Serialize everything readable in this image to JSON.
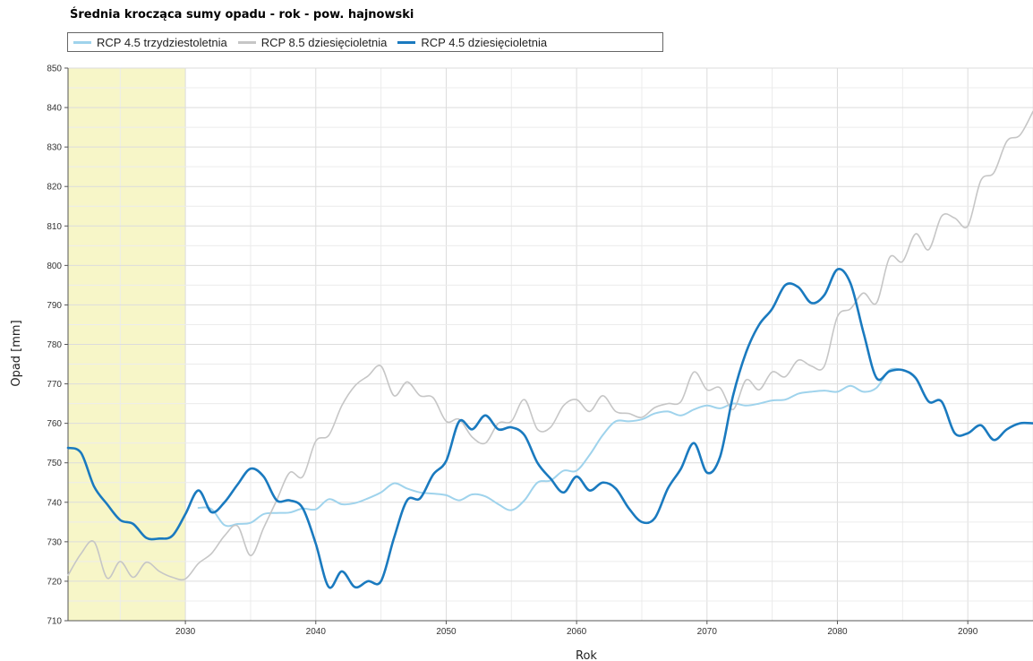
{
  "chart_data": {
    "type": "line",
    "title": "Średnia krocząca sumy opadu - rok - pow. hajnowski",
    "xlabel": "Rok",
    "ylabel": "Opad [mm]",
    "xlim": [
      2021,
      2095
    ],
    "ylim": [
      710,
      850
    ],
    "x_ticks": [
      "2030",
      "2040",
      "2050",
      "2060",
      "2070",
      "2080",
      "2090"
    ],
    "y_ticks": [
      "710",
      "720",
      "730",
      "740",
      "750",
      "760",
      "770",
      "780",
      "790",
      "800",
      "810",
      "820",
      "830",
      "840",
      "850"
    ],
    "grid": true,
    "legend_position": "top",
    "highlight_region": {
      "x_from": 2021,
      "x_to": 2030,
      "color": "#f7f6c8"
    },
    "series": [
      {
        "name": "RCP 4.5 trzydziestoletnia",
        "color": "#9fd3ec",
        "width": 2,
        "x": [
          2031,
          2032,
          2033,
          2034,
          2035,
          2036,
          2037,
          2038,
          2039,
          2040,
          2041,
          2042,
          2043,
          2044,
          2045,
          2046,
          2047,
          2048,
          2049,
          2050,
          2051,
          2052,
          2053,
          2054,
          2055,
          2056,
          2057,
          2058,
          2059,
          2060,
          2061,
          2062,
          2063,
          2064,
          2065,
          2066,
          2067,
          2068,
          2069,
          2070,
          2071,
          2072,
          2073,
          2074,
          2075,
          2076,
          2077,
          2078,
          2079,
          2080,
          2081,
          2082,
          2083,
          2084,
          2085
        ],
        "y": [
          738.6,
          738.3,
          734.2,
          734.5,
          734.8,
          737.0,
          737.3,
          737.4,
          738.4,
          738.2,
          740.8,
          739.5,
          739.8,
          741.0,
          742.5,
          744.8,
          743.5,
          742.5,
          742.2,
          741.8,
          740.5,
          742.0,
          741.5,
          739.5,
          738.0,
          740.5,
          745.0,
          745.5,
          748.0,
          748.0,
          752.0,
          757.0,
          760.5,
          760.5,
          761.0,
          762.5,
          763.0,
          762.0,
          763.5,
          764.5,
          763.8,
          765.0,
          764.5,
          765.0,
          765.8,
          766.0,
          767.5,
          768.0,
          768.3,
          768.0,
          769.5,
          768.0,
          769.0,
          773.5,
          773.5
        ]
      },
      {
        "name": "RCP 8.5 dziesięcioletnia",
        "color": "#c6c6c6",
        "width": 1.6,
        "x": [
          2021,
          2022,
          2023,
          2024,
          2025,
          2026,
          2027,
          2028,
          2029,
          2030,
          2031,
          2032,
          2033,
          2034,
          2035,
          2036,
          2037,
          2038,
          2039,
          2040,
          2041,
          2042,
          2043,
          2044,
          2045,
          2046,
          2047,
          2048,
          2049,
          2050,
          2051,
          2052,
          2053,
          2054,
          2055,
          2056,
          2057,
          2058,
          2059,
          2060,
          2061,
          2062,
          2063,
          2064,
          2065,
          2066,
          2067,
          2068,
          2069,
          2070,
          2071,
          2072,
          2073,
          2074,
          2075,
          2076,
          2077,
          2078,
          2079,
          2080,
          2081,
          2082,
          2083,
          2084,
          2085,
          2086,
          2087,
          2088,
          2089,
          2090,
          2091,
          2092,
          2093,
          2094,
          2095
        ],
        "y": [
          721.5,
          727.0,
          730.0,
          720.8,
          725.0,
          721.0,
          724.8,
          722.5,
          721.0,
          720.6,
          724.5,
          727.0,
          731.5,
          734.0,
          726.5,
          733.5,
          740.5,
          747.5,
          746.5,
          755.5,
          757.0,
          764.5,
          769.5,
          772.0,
          774.5,
          767.0,
          770.5,
          767.0,
          766.5,
          760.5,
          761.0,
          756.5,
          755.0,
          760.0,
          760.5,
          766.0,
          758.5,
          759.0,
          764.5,
          766.0,
          763.0,
          767.0,
          763.0,
          762.5,
          761.5,
          764.0,
          765.0,
          765.5,
          773.0,
          768.5,
          769.0,
          763.5,
          771.0,
          768.5,
          773.0,
          771.8,
          776.0,
          774.5,
          774.5,
          787.0,
          789.0,
          793.0,
          790.5,
          802.0,
          801.0,
          808.0,
          804.0,
          812.5,
          812.0,
          810.0,
          821.5,
          823.5,
          831.5,
          833.0,
          839.0
        ]
      },
      {
        "name": "RCP 4.5 dziesięcioletnia",
        "color": "#1a7abf",
        "width": 2.6,
        "x": [
          2021,
          2022,
          2023,
          2024,
          2025,
          2026,
          2027,
          2028,
          2029,
          2030,
          2031,
          2032,
          2033,
          2034,
          2035,
          2036,
          2037,
          2038,
          2039,
          2040,
          2041,
          2042,
          2043,
          2044,
          2045,
          2046,
          2047,
          2048,
          2049,
          2050,
          2051,
          2052,
          2053,
          2054,
          2055,
          2056,
          2057,
          2058,
          2059,
          2060,
          2061,
          2062,
          2063,
          2064,
          2065,
          2066,
          2067,
          2068,
          2069,
          2070,
          2071,
          2072,
          2073,
          2074,
          2075,
          2076,
          2077,
          2078,
          2079,
          2080,
          2081,
          2082,
          2083,
          2084,
          2085,
          2086,
          2087,
          2088,
          2089,
          2090,
          2091,
          2092,
          2093,
          2094,
          2095
        ],
        "y": [
          753.8,
          752.5,
          744.0,
          739.5,
          735.5,
          734.5,
          731.0,
          730.8,
          731.5,
          737.0,
          743.0,
          737.5,
          740.0,
          744.5,
          748.5,
          746.5,
          740.5,
          740.5,
          738.5,
          729.5,
          718.5,
          722.5,
          718.5,
          720.0,
          720.0,
          731.0,
          740.5,
          741.0,
          747.0,
          750.5,
          760.5,
          758.5,
          762.0,
          758.5,
          759.0,
          757.0,
          750.0,
          746.0,
          742.5,
          746.5,
          743.0,
          745.0,
          743.5,
          738.5,
          735.0,
          736.0,
          743.5,
          748.5,
          755.0,
          747.5,
          751.5,
          767.0,
          778.0,
          785.0,
          789.0,
          795.0,
          794.5,
          790.5,
          792.5,
          799.0,
          795.5,
          783.0,
          771.5,
          773.2,
          773.5,
          771.5,
          765.5,
          765.5,
          757.5,
          757.5,
          759.5,
          755.8,
          758.5,
          760.0,
          760.0
        ]
      }
    ]
  }
}
